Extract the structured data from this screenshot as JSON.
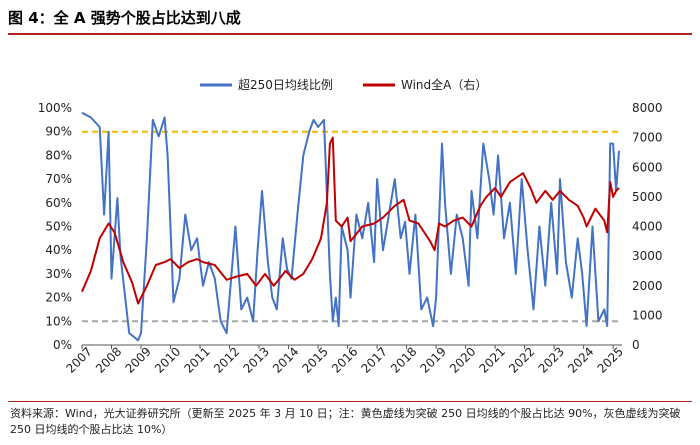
{
  "title": "图 4：全 A 强势个股占比达到八成",
  "source_note": "资料来源：Wind，光大证券研究所（更新至 2025 年 3 月 10 日；注：黄色虚线为突破 250 日均线的个股占比达 90%，灰色虚线为突破 250 日均线的个股占比达 10%）",
  "colors": {
    "series_breadth": "#4472C4",
    "series_index": "#C00000",
    "ref_high": "#F2B800",
    "ref_low": "#A6A6A6"
  },
  "chart_data": {
    "type": "line",
    "x_ticks": [
      "2007",
      "2008",
      "2009",
      "2010",
      "2011",
      "2012",
      "2013",
      "2014",
      "2015",
      "2016",
      "2017",
      "2018",
      "2019",
      "2020",
      "2021",
      "2022",
      "2023",
      "2024",
      "2025"
    ],
    "y_left": {
      "ticks": [
        "0%",
        "10%",
        "20%",
        "30%",
        "40%",
        "50%",
        "60%",
        "70%",
        "80%",
        "90%",
        "100%"
      ],
      "range": [
        0,
        100
      ]
    },
    "y_right": {
      "ticks": [
        "0",
        "1000",
        "2000",
        "3000",
        "4000",
        "5000",
        "6000",
        "7000",
        "8000"
      ],
      "range": [
        0,
        8000
      ]
    },
    "reference_lines": [
      {
        "value": 90,
        "axis": "left",
        "color": "yellow",
        "style": "dashed"
      },
      {
        "value": 10,
        "axis": "left",
        "color": "gray",
        "style": "dashed"
      }
    ],
    "legend": [
      "超250日均线比例",
      "Wind全A（右）"
    ],
    "series": [
      {
        "name": "超250日均线比例",
        "axis": "left",
        "x": [
          2007.0,
          2007.3,
          2007.6,
          2007.75,
          2007.9,
          2008.0,
          2008.2,
          2008.3,
          2008.6,
          2008.9,
          2009.0,
          2009.2,
          2009.4,
          2009.6,
          2009.8,
          2009.9,
          2010.1,
          2010.3,
          2010.5,
          2010.7,
          2010.9,
          2011.1,
          2011.3,
          2011.5,
          2011.7,
          2011.9,
          2012.1,
          2012.2,
          2012.4,
          2012.6,
          2012.8,
          2012.95,
          2013.1,
          2013.3,
          2013.45,
          2013.6,
          2013.8,
          2013.95,
          2014.1,
          2014.3,
          2014.5,
          2014.7,
          2014.85,
          2015.0,
          2015.2,
          2015.4,
          2015.5,
          2015.6,
          2015.7,
          2015.8,
          2016.0,
          2016.1,
          2016.3,
          2016.5,
          2016.7,
          2016.9,
          2017.0,
          2017.2,
          2017.4,
          2017.6,
          2017.8,
          2017.95,
          2018.1,
          2018.3,
          2018.5,
          2018.7,
          2018.9,
          2019.0,
          2019.2,
          2019.3,
          2019.5,
          2019.7,
          2019.9,
          2020.1,
          2020.2,
          2020.4,
          2020.6,
          2020.8,
          2020.95,
          2021.1,
          2021.3,
          2021.5,
          2021.7,
          2021.9,
          2022.1,
          2022.3,
          2022.5,
          2022.7,
          2022.9,
          2023.1,
          2023.2,
          2023.4,
          2023.6,
          2023.8,
          2023.95,
          2024.1,
          2024.3,
          2024.5,
          2024.7,
          2024.8,
          2024.9,
          2025.0,
          2025.1,
          2025.2
        ],
        "values": [
          98,
          96,
          92,
          55,
          90,
          28,
          62,
          38,
          5,
          2,
          5,
          45,
          95,
          88,
          96,
          80,
          18,
          28,
          55,
          40,
          45,
          25,
          35,
          28,
          10,
          5,
          35,
          50,
          15,
          20,
          10,
          40,
          65,
          35,
          20,
          15,
          45,
          32,
          28,
          55,
          80,
          90,
          95,
          92,
          95,
          30,
          10,
          20,
          8,
          50,
          40,
          20,
          55,
          45,
          60,
          35,
          70,
          40,
          55,
          70,
          45,
          52,
          30,
          55,
          15,
          20,
          8,
          20,
          85,
          60,
          30,
          55,
          45,
          25,
          65,
          45,
          85,
          70,
          55,
          80,
          45,
          60,
          30,
          70,
          40,
          15,
          50,
          25,
          60,
          30,
          70,
          35,
          20,
          45,
          30,
          8,
          50,
          10,
          15,
          8,
          85,
          85,
          65,
          82
        ]
      },
      {
        "name": "Wind全A（右）",
        "axis": "right",
        "x": [
          2007.0,
          2007.3,
          2007.6,
          2007.9,
          2008.1,
          2008.4,
          2008.7,
          2008.9,
          2009.2,
          2009.5,
          2009.8,
          2010.0,
          2010.3,
          2010.6,
          2010.9,
          2011.1,
          2011.5,
          2011.9,
          2012.2,
          2012.6,
          2012.9,
          2013.2,
          2013.5,
          2013.9,
          2014.2,
          2014.5,
          2014.8,
          2015.1,
          2015.3,
          2015.4,
          2015.5,
          2015.6,
          2015.8,
          2016.0,
          2016.1,
          2016.5,
          2016.9,
          2017.2,
          2017.6,
          2017.9,
          2018.1,
          2018.4,
          2018.8,
          2018.95,
          2019.1,
          2019.3,
          2019.6,
          2019.9,
          2020.2,
          2020.5,
          2020.7,
          2021.0,
          2021.2,
          2021.5,
          2021.8,
          2021.95,
          2022.2,
          2022.4,
          2022.7,
          2022.95,
          2023.2,
          2023.5,
          2023.8,
          2024.0,
          2024.1,
          2024.4,
          2024.7,
          2024.8,
          2024.9,
          2025.0,
          2025.1,
          2025.2
        ],
        "values": [
          1800,
          2500,
          3600,
          4100,
          3800,
          2800,
          2100,
          1400,
          2000,
          2700,
          2800,
          2900,
          2600,
          2800,
          2900,
          2800,
          2700,
          2200,
          2300,
          2400,
          2000,
          2400,
          2000,
          2500,
          2200,
          2400,
          2900,
          3600,
          4800,
          6800,
          7000,
          4200,
          4000,
          4300,
          3500,
          4000,
          4100,
          4300,
          4700,
          4900,
          4200,
          4100,
          3500,
          3200,
          4100,
          4000,
          4200,
          4300,
          4000,
          4700,
          5000,
          5300,
          5000,
          5500,
          5700,
          5800,
          5300,
          4800,
          5200,
          4900,
          5200,
          4900,
          4700,
          4300,
          4000,
          4600,
          4200,
          3800,
          5500,
          5000,
          5200,
          5300
        ]
      }
    ]
  }
}
